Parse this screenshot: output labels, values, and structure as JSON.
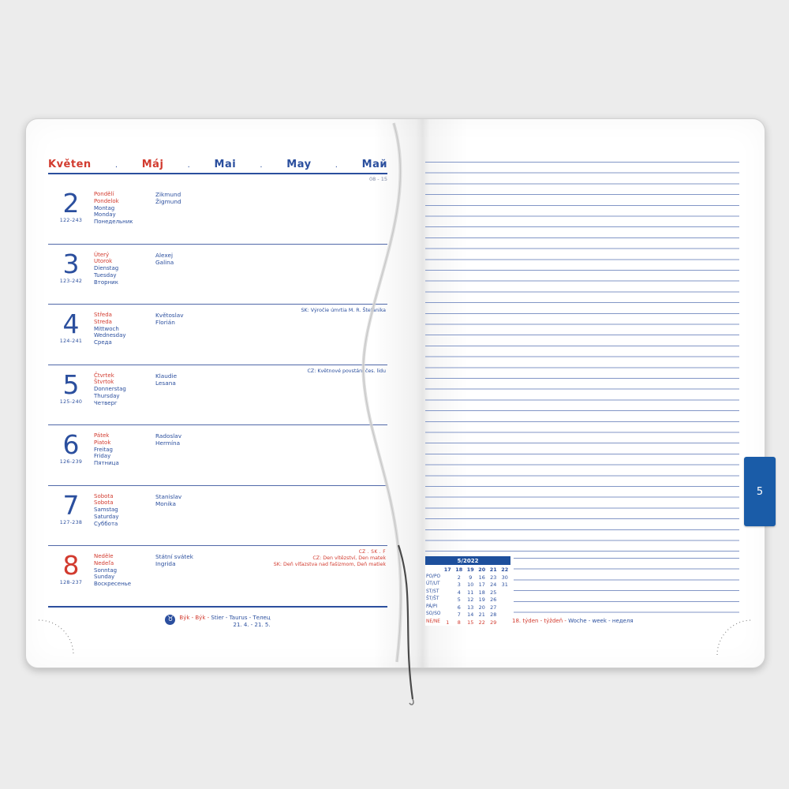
{
  "header": {
    "months": [
      "Květen",
      "Máj",
      "Mai",
      "May",
      "Май"
    ],
    "separator": ".",
    "week_range": "08 - 15"
  },
  "days": [
    {
      "number": "2",
      "red": false,
      "day_of_year": "122-243",
      "names": [
        "Pondělí",
        "Pondelok",
        "Montag",
        "Monday",
        "Понедельник"
      ],
      "namedays": [
        "Zikmund",
        "Žigmund"
      ],
      "notes": []
    },
    {
      "number": "3",
      "red": false,
      "day_of_year": "123-242",
      "names": [
        "Úterý",
        "Utorok",
        "Dienstag",
        "Tuesday",
        "Вторник"
      ],
      "namedays": [
        "Alexej",
        "Galina"
      ],
      "notes": []
    },
    {
      "number": "4",
      "red": false,
      "day_of_year": "124-241",
      "names": [
        "Středa",
        "Streda",
        "Mittwoch",
        "Wednesday",
        "Среда"
      ],
      "namedays": [
        "Květoslav",
        "Florián"
      ],
      "notes": [
        {
          "text": "SK: Výročie úmrtia M. R. Štefánika",
          "color": "blue"
        }
      ]
    },
    {
      "number": "5",
      "red": false,
      "day_of_year": "125-240",
      "names": [
        "Čtvrtek",
        "Štvrtok",
        "Donnerstag",
        "Thursday",
        "Четверг"
      ],
      "namedays": [
        "Klaudie",
        "Lesana"
      ],
      "notes": [
        {
          "text": "CZ: Květnové povstání čes. lidu",
          "color": "blue"
        }
      ]
    },
    {
      "number": "6",
      "red": false,
      "day_of_year": "126-239",
      "names": [
        "Pátek",
        "Piatok",
        "Freitag",
        "Friday",
        "Пятница"
      ],
      "namedays": [
        "Radoslav",
        "Hermína"
      ],
      "notes": []
    },
    {
      "number": "7",
      "red": false,
      "day_of_year": "127-238",
      "names": [
        "Sobota",
        "Sobota",
        "Samstag",
        "Saturday",
        "Суббота"
      ],
      "namedays": [
        "Stanislav",
        "Monika"
      ],
      "notes": []
    },
    {
      "number": "8",
      "red": true,
      "day_of_year": "128-237",
      "names": [
        "Neděle",
        "Nedeľa",
        "Sonntag",
        "Sunday",
        "Воскресенье"
      ],
      "namedays": [
        "Státní svátek",
        "Ingrida"
      ],
      "notes": [
        {
          "text": "CZ . SK . F",
          "color": "red",
          "tiny": true
        },
        {
          "text": "CZ: Den vítězství, Den matek",
          "color": "red"
        },
        {
          "text": "SK: Deň víťazstva nad fašizmom, Deň matiek",
          "color": "red"
        }
      ]
    }
  ],
  "zodiac": {
    "icon": "taurus-bull-icon",
    "icon_glyph": "♉",
    "names_red": "Býk - Býk -",
    "names_blue": "Stier - Taurus - Телец",
    "dates": "21. 4. - 21. 5."
  },
  "right_page": {
    "tab_label": "5",
    "mini_calendar": {
      "title": "5/2022",
      "week_numbers": [
        "17",
        "18",
        "19",
        "20",
        "21",
        "22"
      ],
      "rows": [
        {
          "label": "PO/PO",
          "red": false,
          "values": [
            "",
            "2",
            "9",
            "16",
            "23",
            "30"
          ]
        },
        {
          "label": "ÚT/UT",
          "red": false,
          "values": [
            "",
            "3",
            "10",
            "17",
            "24",
            "31"
          ]
        },
        {
          "label": "ST/ST",
          "red": false,
          "values": [
            "",
            "4",
            "11",
            "18",
            "25",
            ""
          ]
        },
        {
          "label": "ŠT/ŠT",
          "red": false,
          "values": [
            "",
            "5",
            "12",
            "19",
            "26",
            ""
          ]
        },
        {
          "label": "PÁ/PI",
          "red": false,
          "values": [
            "",
            "6",
            "13",
            "20",
            "27",
            ""
          ]
        },
        {
          "label": "SO/SO",
          "red": false,
          "values": [
            "",
            "7",
            "14",
            "21",
            "28",
            ""
          ]
        },
        {
          "label": "NE/NE",
          "red": true,
          "values": [
            "1",
            "8",
            "15",
            "22",
            "29",
            ""
          ]
        }
      ]
    },
    "week_label": {
      "red_part": "18. týden - týždeň -",
      "blue_part": "Woche - week - неделя"
    }
  },
  "colors": {
    "accent_red": "#d23b2f",
    "accent_blue": "#2b4f9e",
    "tab_blue": "#1a5ca8",
    "rule_light": "#8296c6"
  }
}
